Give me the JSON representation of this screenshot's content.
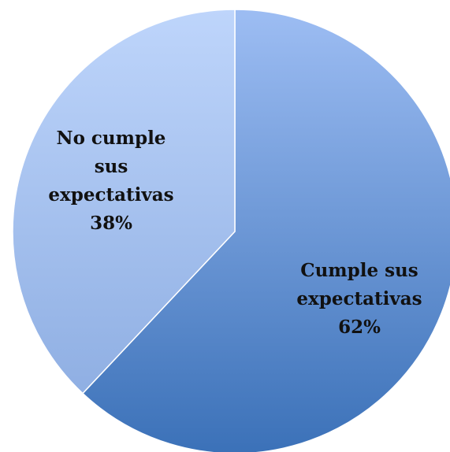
{
  "chart_data": {
    "type": "pie",
    "title": "",
    "categories": [
      "Cumple sus expectativas",
      "No cumple sus expectativas"
    ],
    "values": [
      62,
      38
    ],
    "value_labels": [
      "62%",
      "38%"
    ],
    "slice_label_lines": [
      [
        "Cumple sus",
        "expectativas",
        "62%"
      ],
      [
        "No cumple",
        "sus",
        "expectativas",
        "38%"
      ]
    ],
    "colors": {
      "cumple_light": "#9dbdf3",
      "cumple_dark": "#3b71b8",
      "no_cumple_light": "#bed5fb",
      "no_cumple_dark": "#88a9df",
      "edge": "#ffffff"
    },
    "legend": "none"
  }
}
